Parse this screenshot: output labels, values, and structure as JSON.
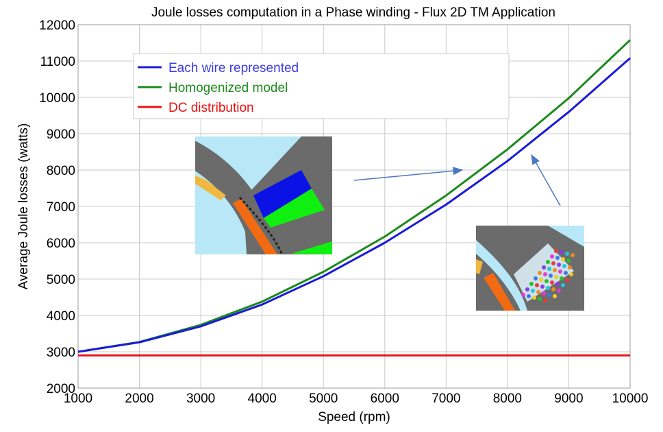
{
  "chart_data": {
    "type": "line",
    "title": "Joule losses computation in a Phase winding - Flux 2D TM Application",
    "xlabel": "Speed (rpm)",
    "ylabel": "Average Joule losses (watts)",
    "xlim": [
      1000,
      10000
    ],
    "ylim": [
      2000,
      12000
    ],
    "x_ticks": [
      1000,
      2000,
      3000,
      4000,
      5000,
      6000,
      7000,
      8000,
      9000,
      10000
    ],
    "y_ticks": [
      2000,
      3000,
      4000,
      5000,
      6000,
      7000,
      8000,
      9000,
      10000,
      11000,
      12000
    ],
    "grid": true,
    "legend_position": "top-left",
    "x": [
      1000,
      2000,
      3000,
      4000,
      5000,
      6000,
      7000,
      8000,
      9000,
      10000
    ],
    "series": [
      {
        "name": "Each wire represented",
        "color": "#1a1adc",
        "values": [
          3000,
          3260,
          3700,
          4300,
          5080,
          6000,
          7050,
          8250,
          9600,
          11080
        ]
      },
      {
        "name": "Homogenized model",
        "color": "#1b8a1b",
        "values": [
          3000,
          3270,
          3740,
          4380,
          5200,
          6170,
          7300,
          8570,
          9980,
          11580
        ]
      },
      {
        "name": "DC distribution",
        "color": "#ee1111",
        "values": [
          2900,
          2900,
          2900,
          2900,
          2900,
          2900,
          2900,
          2900,
          2900,
          2900
        ]
      }
    ],
    "insets": [
      {
        "description_icon": "homogenized-winding-cross-section"
      },
      {
        "description_icon": "individual-wires-cross-section"
      }
    ]
  }
}
